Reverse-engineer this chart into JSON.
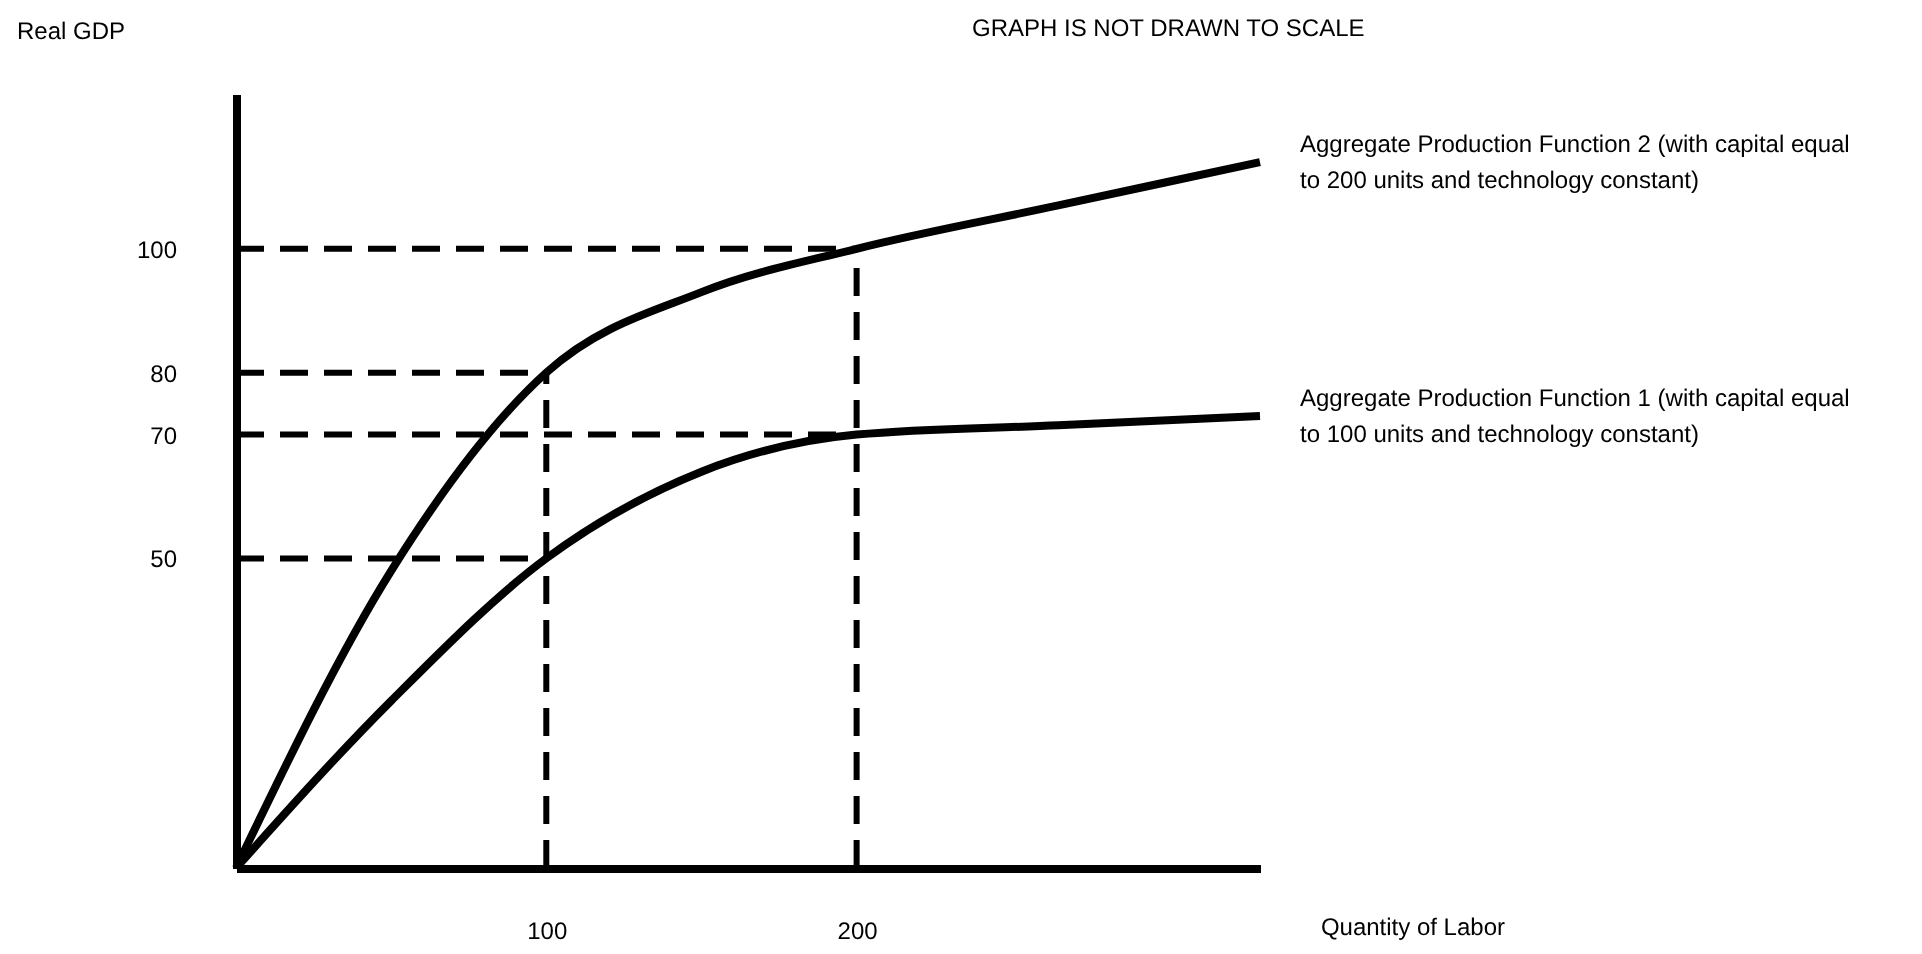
{
  "chart_data": {
    "type": "line",
    "title": "GRAPH IS NOT DRAWN TO SCALE",
    "xlabel": "Quantity of Labor",
    "ylabel": "Real GDP",
    "xlim": [
      0,
      330
    ],
    "ylim": [
      0,
      125
    ],
    "xticks": [
      100,
      200
    ],
    "yticks": [
      50,
      70,
      80,
      100
    ],
    "marker": "none",
    "series": [
      {
        "name": "Aggregate Production Function 2 (with capital equal to 200 units and technology constant)",
        "color": "#000000",
        "line_style": "solid",
        "x": [
          0,
          50,
          100,
          150,
          200,
          265,
          330
        ],
        "values": [
          0,
          48,
          80,
          93,
          100,
          107,
          114
        ]
      },
      {
        "name": "Aggregate Production Function 1 (with capital equal to 100 units and technology constant)",
        "color": "#000000",
        "line_style": "solid",
        "x": [
          0,
          50,
          100,
          150,
          200,
          265,
          330
        ],
        "values": [
          0,
          27,
          50,
          64,
          70,
          71.5,
          73
        ]
      },
      {
        "color": "#000000",
        "line_style": "dashed",
        "x": [
          0,
          200
        ],
        "values": [
          100,
          100
        ]
      },
      {
        "color": "#000000",
        "line_style": "dashed",
        "x": [
          200,
          200
        ],
        "values": [
          0,
          100
        ]
      },
      {
        "color": "#000000",
        "line_style": "dashed",
        "x": [
          0,
          100
        ],
        "values": [
          80,
          80
        ]
      },
      {
        "color": "#000000",
        "line_style": "dashed",
        "x": [
          100,
          100
        ],
        "values": [
          0,
          80
        ]
      },
      {
        "color": "#000000",
        "line_style": "dashed",
        "x": [
          0,
          200
        ],
        "values": [
          70,
          70
        ]
      },
      {
        "color": "#000000",
        "line_style": "dashed",
        "x": [
          0,
          100
        ],
        "values": [
          50,
          50
        ]
      }
    ]
  }
}
